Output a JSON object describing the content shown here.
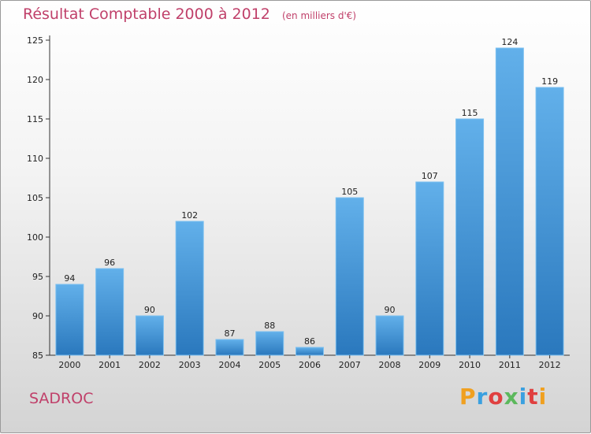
{
  "header": {
    "title": "Résultat Comptable 2000 à 2012",
    "subtitle": "(en milliers d'€)"
  },
  "footer": {
    "commune": "SADROC",
    "logo_text": "Proxiti",
    "logo_colors": [
      "#f0a020",
      "#3aa0e0",
      "#e04040",
      "#5cb85c",
      "#3aa0e0",
      "#e04040",
      "#f0a020"
    ]
  },
  "colors": {
    "title": "#c0406a",
    "bar_light": "#62b0ea",
    "bar_dark": "#2a78bd"
  },
  "chart_data": {
    "type": "bar",
    "title": "Résultat Comptable 2000 à 2012",
    "subtitle": "(en milliers d'€)",
    "xlabel": "",
    "ylabel": "",
    "categories": [
      "2000",
      "2001",
      "2002",
      "2003",
      "2004",
      "2005",
      "2006",
      "2007",
      "2008",
      "2009",
      "2010",
      "2011",
      "2012"
    ],
    "values": [
      94,
      96,
      90,
      102,
      87,
      88,
      86,
      105,
      90,
      107,
      115,
      124,
      119
    ],
    "ylim": [
      85,
      125
    ],
    "yticks": [
      85,
      90,
      95,
      100,
      105,
      110,
      115,
      120,
      125
    ],
    "grid": false,
    "legend": "none"
  }
}
